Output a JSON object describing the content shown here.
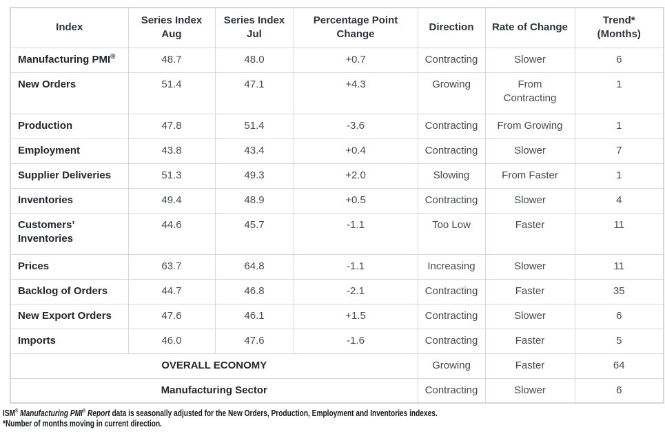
{
  "chart_data": {
    "type": "table",
    "columns": [
      "Index",
      "Series Index\nAug",
      "Series Index\nJul",
      "Percentage Point\nChange",
      "Direction",
      "Rate of Change",
      "Trend*\n(Months)"
    ],
    "rows": [
      {
        "index": "Manufacturing PMI",
        "index_sup": "®",
        "aug": "48.7",
        "jul": "48.0",
        "change": "+0.7",
        "direction": "Contracting",
        "rate": "Slower",
        "trend": "6"
      },
      {
        "index": "New Orders",
        "aug": "51.4",
        "jul": "47.1",
        "change": "+4.3",
        "direction": "Growing",
        "rate": "From\nContracting",
        "trend": "1"
      },
      {
        "index": "Production",
        "aug": "47.8",
        "jul": "51.4",
        "change": "-3.6",
        "direction": "Contracting",
        "rate": "From Growing",
        "trend": "1"
      },
      {
        "index": "Employment",
        "aug": "43.8",
        "jul": "43.4",
        "change": "+0.4",
        "direction": "Contracting",
        "rate": "Slower",
        "trend": "7"
      },
      {
        "index": "Supplier Deliveries",
        "aug": "51.3",
        "jul": "49.3",
        "change": "+2.0",
        "direction": "Slowing",
        "rate": "From Faster",
        "trend": "1"
      },
      {
        "index": "Inventories",
        "aug": "49.4",
        "jul": "48.9",
        "change": "+0.5",
        "direction": "Contracting",
        "rate": "Slower",
        "trend": "4"
      },
      {
        "index": "Customers’\nInventories",
        "aug": "44.6",
        "jul": "45.7",
        "change": "-1.1",
        "direction": "Too Low",
        "rate": "Faster",
        "trend": "11"
      },
      {
        "index": "Prices",
        "aug": "63.7",
        "jul": "64.8",
        "change": "-1.1",
        "direction": "Increasing",
        "rate": "Slower",
        "trend": "11"
      },
      {
        "index": "Backlog of Orders",
        "aug": "44.7",
        "jul": "46.8",
        "change": "-2.1",
        "direction": "Contracting",
        "rate": "Faster",
        "trend": "35"
      },
      {
        "index": "New Export Orders",
        "aug": "47.6",
        "jul": "46.1",
        "change": "+1.5",
        "direction": "Contracting",
        "rate": "Slower",
        "trend": "6"
      },
      {
        "index": "Imports",
        "aug": "46.0",
        "jul": "47.6",
        "change": "-1.6",
        "direction": "Contracting",
        "rate": "Faster",
        "trend": "5"
      }
    ],
    "summary_rows": [
      {
        "label": "OVERALL ECONOMY",
        "direction": "Growing",
        "rate": "Faster",
        "trend": "64"
      },
      {
        "label": "Manufacturing Sector",
        "direction": "Contracting",
        "rate": "Slower",
        "trend": "6"
      }
    ]
  },
  "footnote": {
    "ism": "ISM",
    "reg1": "®",
    "italic1": " Manufacturing PMI",
    "reg2": "®",
    "italic2": " Report",
    "line1_rest": " data is seasonally adjusted for the New Orders, Production, Employment and Inventories indexes.",
    "line2": "*Number of months moving in current direction."
  },
  "colors": {
    "background": "#ffffff",
    "border": "#d6d6d6",
    "header_text": "#2e343b",
    "label_text": "#23282e",
    "value_text": "#454b52",
    "footnote_text": "#14181c"
  }
}
